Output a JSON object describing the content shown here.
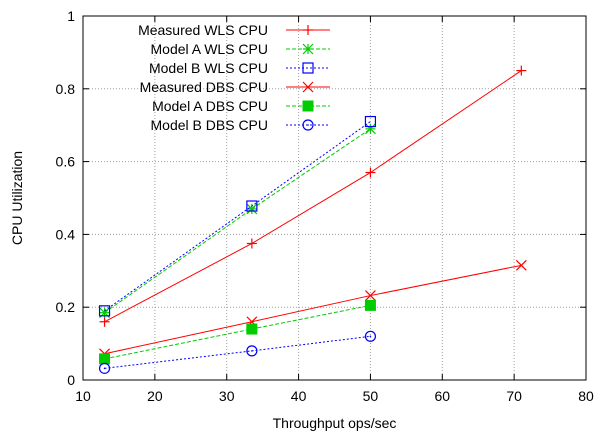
{
  "chart_data": {
    "type": "line",
    "title": "",
    "xlabel": "Throughput ops/sec",
    "ylabel": "CPU Utilization",
    "xlim": [
      10,
      80
    ],
    "ylim": [
      0,
      1
    ],
    "xticks": [
      10,
      20,
      30,
      40,
      50,
      60,
      70,
      80
    ],
    "yticks": [
      0,
      0.2,
      0.4,
      0.6,
      0.8,
      1
    ],
    "ytick_labels": [
      "0",
      "0.2",
      "0.4",
      "0.6",
      "0.8",
      "1"
    ],
    "grid": true,
    "legend_position": "top-left",
    "series": [
      {
        "name": "Measured WLS CPU",
        "color": "#ff0000",
        "line_style": "solid",
        "marker": "plus",
        "x": [
          13,
          33.5,
          50,
          71
        ],
        "y": [
          0.16,
          0.375,
          0.57,
          0.85
        ]
      },
      {
        "name": "Model A WLS CPU",
        "color": "#00cc00",
        "line_style": "dashed",
        "marker": "star",
        "x": [
          13,
          33.5,
          50
        ],
        "y": [
          0.185,
          0.47,
          0.69
        ]
      },
      {
        "name": "Model B WLS CPU",
        "color": "#0000ff",
        "line_style": "dotted",
        "marker": "open-square",
        "x": [
          13,
          33.5,
          50
        ],
        "y": [
          0.19,
          0.478,
          0.71
        ]
      },
      {
        "name": "Measured DBS CPU",
        "color": "#ff0000",
        "line_style": "solid",
        "marker": "x",
        "x": [
          13,
          33.5,
          50,
          71
        ],
        "y": [
          0.072,
          0.16,
          0.232,
          0.315
        ]
      },
      {
        "name": "Model A DBS CPU",
        "color": "#00cc00",
        "line_style": "dashed",
        "marker": "filled-square",
        "x": [
          13,
          33.5,
          50
        ],
        "y": [
          0.058,
          0.14,
          0.205
        ]
      },
      {
        "name": "Model B DBS CPU",
        "color": "#0000ff",
        "line_style": "dotted",
        "marker": "open-circle",
        "x": [
          13,
          33.5,
          50
        ],
        "y": [
          0.032,
          0.08,
          0.12
        ]
      }
    ]
  }
}
